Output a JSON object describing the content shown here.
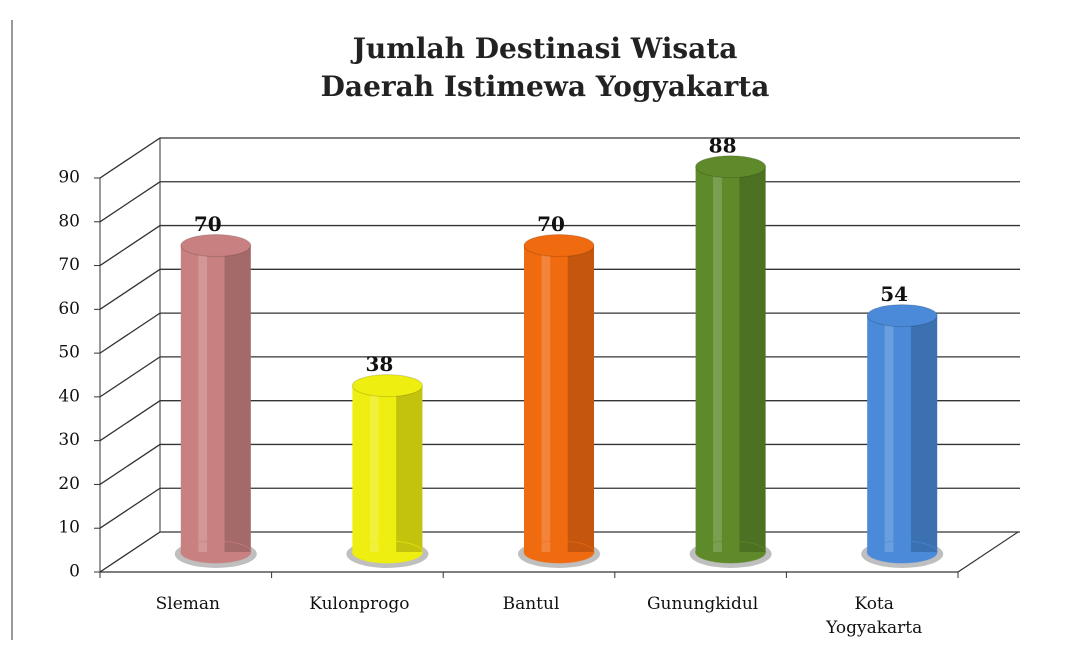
{
  "chart_data": {
    "type": "bar3d",
    "title": "Jumlah Destinasi Wisata\nDaerah Istimewa Yogyakarta",
    "categories": [
      "Sleman",
      "Kulonprogo",
      "Bantul",
      "Gunungkidul",
      "Kota Yogyakarta"
    ],
    "values": [
      70,
      38,
      70,
      88,
      54
    ],
    "colors": [
      "#c98080",
      "#eeee10",
      "#f06a10",
      "#5f8a2a",
      "#4a8ad8"
    ],
    "ylim": [
      0,
      90
    ],
    "yticks": [
      0,
      10,
      20,
      30,
      40,
      50,
      60,
      70,
      80,
      90
    ],
    "grid": true
  }
}
